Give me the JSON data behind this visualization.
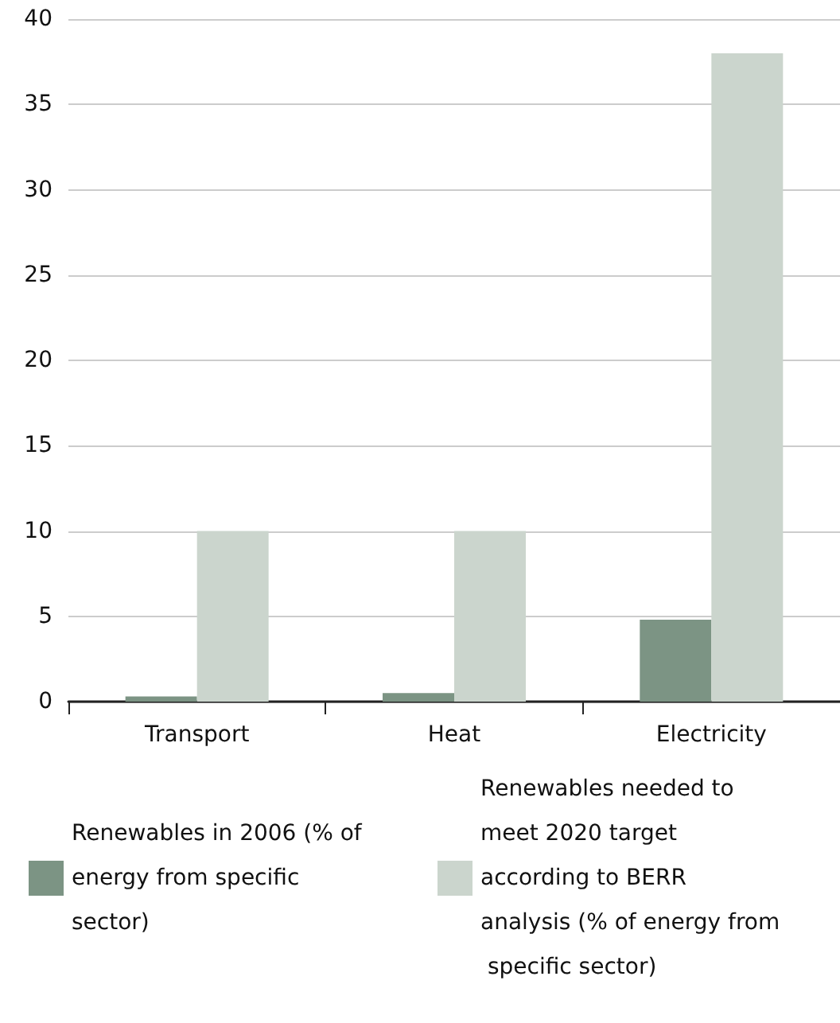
{
  "chart_data": {
    "type": "bar",
    "categories": [
      "Transport",
      "Heat",
      "Electricity"
    ],
    "series": [
      {
        "name": "Renewables in 2006 (% of energy from specific sector)",
        "color": "#7c9484",
        "values": [
          0.3,
          0.5,
          4.8
        ]
      },
      {
        "name": "Renewables needed to meet 2020 target according to BERR analysis (% of energy from specific sector)",
        "color": "#cbd5cd",
        "values": [
          10,
          10,
          38
        ]
      }
    ],
    "ylim": [
      0,
      40
    ],
    "yticks": [
      0,
      5,
      10,
      15,
      20,
      25,
      30,
      35,
      40
    ],
    "grid": "y",
    "legend": "bottom"
  }
}
